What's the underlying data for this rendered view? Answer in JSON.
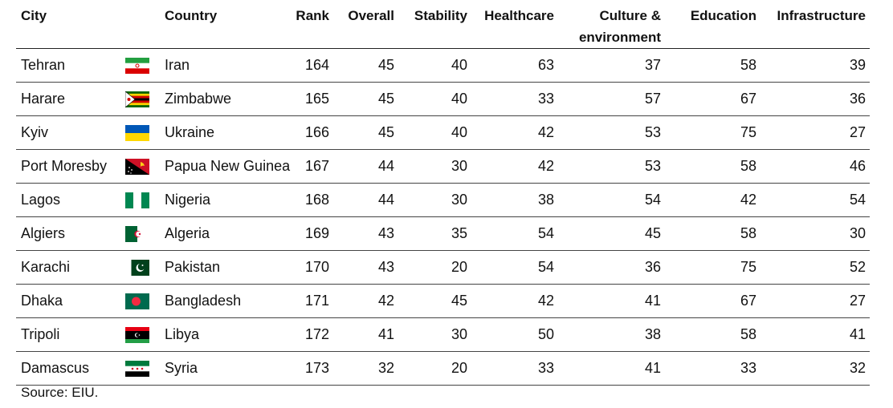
{
  "chart_data": {
    "type": "table",
    "columns": [
      "City",
      "Country",
      "Rank",
      "Overall",
      "Stability",
      "Healthcare",
      "Culture & environment",
      "Education",
      "Infrastructure"
    ],
    "rows": [
      {
        "city": "Tehran",
        "country": "Iran",
        "flag": "iran-flag",
        "rank": 164,
        "overall": 45,
        "stability": 40,
        "healthcare": 63,
        "culture": 37,
        "education": 58,
        "infrastructure": 39
      },
      {
        "city": "Harare",
        "country": "Zimbabwe",
        "flag": "zimbabwe-flag",
        "rank": 165,
        "overall": 45,
        "stability": 40,
        "healthcare": 33,
        "culture": 57,
        "education": 67,
        "infrastructure": 36
      },
      {
        "city": "Kyiv",
        "country": "Ukraine",
        "flag": "ukraine-flag",
        "rank": 166,
        "overall": 45,
        "stability": 40,
        "healthcare": 42,
        "culture": 53,
        "education": 75,
        "infrastructure": 27
      },
      {
        "city": "Port Moresby",
        "country": "Papua New Guinea",
        "flag": "papua-new-guinea-flag",
        "rank": 167,
        "overall": 44,
        "stability": 30,
        "healthcare": 42,
        "culture": 53,
        "education": 58,
        "infrastructure": 46
      },
      {
        "city": "Lagos",
        "country": "Nigeria",
        "flag": "nigeria-flag",
        "rank": 168,
        "overall": 44,
        "stability": 30,
        "healthcare": 38,
        "culture": 54,
        "education": 42,
        "infrastructure": 54
      },
      {
        "city": "Algiers",
        "country": "Algeria",
        "flag": "algeria-flag",
        "rank": 169,
        "overall": 43,
        "stability": 35,
        "healthcare": 54,
        "culture": 45,
        "education": 58,
        "infrastructure": 30
      },
      {
        "city": "Karachi",
        "country": "Pakistan",
        "flag": "pakistan-flag",
        "rank": 170,
        "overall": 43,
        "stability": 20,
        "healthcare": 54,
        "culture": 36,
        "education": 75,
        "infrastructure": 52
      },
      {
        "city": "Dhaka",
        "country": "Bangladesh",
        "flag": "bangladesh-flag",
        "rank": 171,
        "overall": 42,
        "stability": 45,
        "healthcare": 42,
        "culture": 41,
        "education": 67,
        "infrastructure": 27
      },
      {
        "city": "Tripoli",
        "country": "Libya",
        "flag": "libya-flag",
        "rank": 172,
        "overall": 41,
        "stability": 30,
        "healthcare": 50,
        "culture": 38,
        "education": 58,
        "infrastructure": 41
      },
      {
        "city": "Damascus",
        "country": "Syria",
        "flag": "syria-flag",
        "rank": 173,
        "overall": 32,
        "stability": 20,
        "healthcare": 33,
        "culture": 41,
        "education": 33,
        "infrastructure": 32
      }
    ],
    "source": "Source: EIU."
  },
  "header": {
    "city": "City",
    "country": "Country",
    "rank": "Rank",
    "overall": "Overall",
    "stability": "Stability",
    "healthcare": "Healthcare",
    "culture_line1": "Culture &",
    "culture_line2": "environment",
    "education": "Education",
    "infrastructure": "Infrastructure"
  },
  "colors": {
    "text": "#121212",
    "rule": "#444444"
  }
}
